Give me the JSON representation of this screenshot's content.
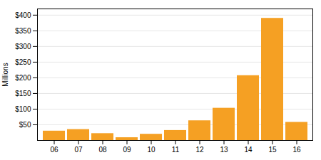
{
  "chart_data": {
    "type": "bar",
    "categories": [
      "06",
      "07",
      "08",
      "09",
      "10",
      "11",
      "12",
      "13",
      "14",
      "15",
      "16"
    ],
    "values": [
      30,
      35,
      22,
      9,
      20,
      32,
      63,
      103,
      207,
      390,
      58
    ],
    "color": "#f5a023",
    "ylabel": "Millions",
    "ylim": [
      0,
      420
    ],
    "yticks": [
      {
        "value": 50,
        "label": "$50"
      },
      {
        "value": 100,
        "label": "$100"
      },
      {
        "value": 150,
        "label": "$150"
      },
      {
        "value": 200,
        "label": "$200"
      },
      {
        "value": 250,
        "label": "$250"
      },
      {
        "value": 300,
        "label": "$300"
      },
      {
        "value": 350,
        "label": "$350"
      },
      {
        "value": 400,
        "label": "$400"
      }
    ],
    "grid": true
  }
}
